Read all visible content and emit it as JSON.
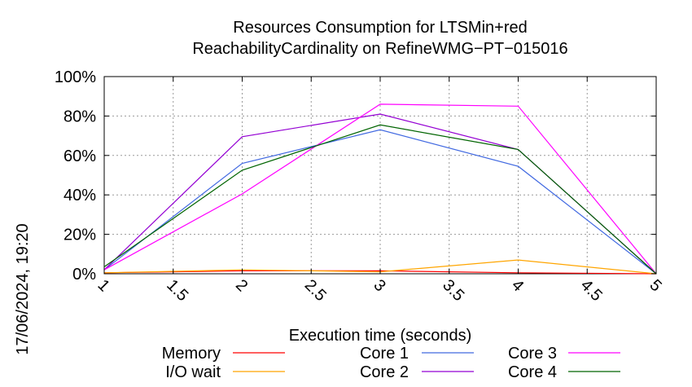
{
  "chart_data": {
    "type": "line",
    "title": "Resources Consumption for LTSMin+red",
    "subtitle": "ReachabilityCardinality on RefineWMG−PT−015016",
    "xlabel": "Execution time (seconds)",
    "ylabel": "",
    "xlim": [
      1,
      5
    ],
    "ylim": [
      0,
      100
    ],
    "x_ticks": [
      "1",
      "1.5",
      "2",
      "2.5",
      "3",
      "3.5",
      "4",
      "4.5",
      "5"
    ],
    "y_ticks": [
      "0%",
      "20%",
      "40%",
      "60%",
      "80%",
      "100%"
    ],
    "grid": true,
    "legend_position": "bottom",
    "timestamp": "17/06/2024, 19:20",
    "x": [
      1,
      2,
      3,
      4,
      5
    ],
    "series": [
      {
        "name": "Memory",
        "color": "#ff0000",
        "values": [
          0.5,
          1.5,
          1.5,
          0.5,
          0
        ]
      },
      {
        "name": "I/O wait",
        "color": "#ffa500",
        "values": [
          0.5,
          2,
          1,
          7,
          0
        ]
      },
      {
        "name": "Core 1",
        "color": "#4169e1",
        "values": [
          2,
          56,
          73,
          54.5,
          0
        ]
      },
      {
        "name": "Core 2",
        "color": "#9400d3",
        "values": [
          2,
          69.5,
          81,
          63,
          0
        ]
      },
      {
        "name": "Core 3",
        "color": "#ff00ff",
        "values": [
          2,
          40.5,
          86,
          85,
          0
        ]
      },
      {
        "name": "Core 4",
        "color": "#006400",
        "values": [
          3.5,
          52.5,
          75.5,
          63,
          0
        ]
      }
    ]
  }
}
